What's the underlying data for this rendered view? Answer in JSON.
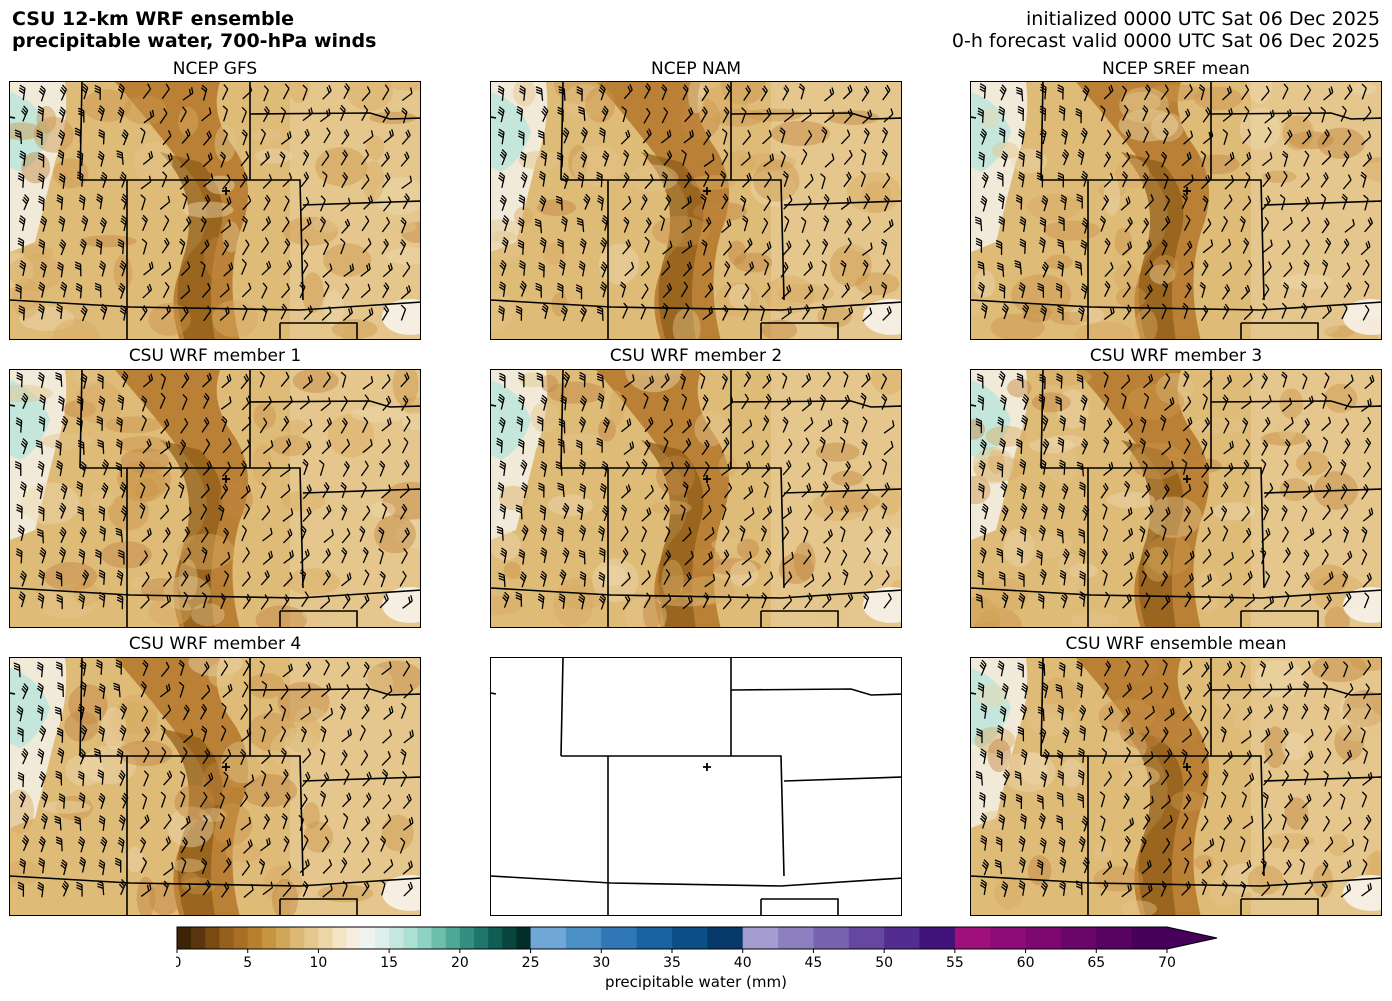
{
  "header": {
    "title_line1": "CSU 12-km WRF ensemble",
    "title_line2": "precipitable water, 700-hPa winds",
    "valid_line1": "initialized 0000 UTC Sat 06 Dec 2025",
    "valid_line2": "0-h forecast valid 0000 UTC Sat 06 Dec 2025"
  },
  "panels": [
    {
      "title": "NCEP GFS"
    },
    {
      "title": "NCEP NAM"
    },
    {
      "title": "NCEP SREF mean"
    },
    {
      "title": "CSU WRF member 1"
    },
    {
      "title": "CSU WRF member 2"
    },
    {
      "title": "CSU WRF member 3"
    },
    {
      "title": "CSU WRF member 4"
    },
    {
      "title": ""
    },
    {
      "title": "CSU WRF ensemble mean"
    }
  ],
  "colorbar": {
    "label": "precipitable water (mm)",
    "ticks": [
      "0",
      "5",
      "10",
      "15",
      "20",
      "25",
      "30",
      "35",
      "40",
      "45",
      "50",
      "55",
      "60",
      "65",
      "70"
    ],
    "min": 0,
    "max": 70,
    "extend": "max",
    "segments": [
      {
        "from": 0,
        "to": 25,
        "colors": [
          "#3d2306",
          "#5b3510",
          "#7a4a12",
          "#94601c",
          "#a86f24",
          "#b8802e",
          "#c69542",
          "#d1a659",
          "#dbb873",
          "#e4c78c",
          "#ecd6a8",
          "#f3e5c6",
          "#f6efe0",
          "#eef5f1",
          "#ddefea",
          "#c6e7e0",
          "#ace0d3",
          "#8dd2c2",
          "#6dbfac",
          "#4fa896",
          "#348f80",
          "#1f766a",
          "#105d54",
          "#06463f",
          "#022e29"
        ]
      },
      {
        "from": 25,
        "to": 40,
        "colors": [
          "#6fa8d6",
          "#4b8fc7",
          "#2f78b5",
          "#1863a0",
          "#0b4f88",
          "#073a6a"
        ]
      },
      {
        "from": 40,
        "to": 55,
        "colors": [
          "#a59ccf",
          "#8d7fc0",
          "#7863b1",
          "#6547a1",
          "#532c8f",
          "#3f137a"
        ]
      },
      {
        "from": 55,
        "to": 70,
        "colors": [
          "#a0107d",
          "#8e0c77",
          "#7c0870",
          "#6a0569",
          "#580361",
          "#46005a"
        ]
      }
    ]
  }
}
